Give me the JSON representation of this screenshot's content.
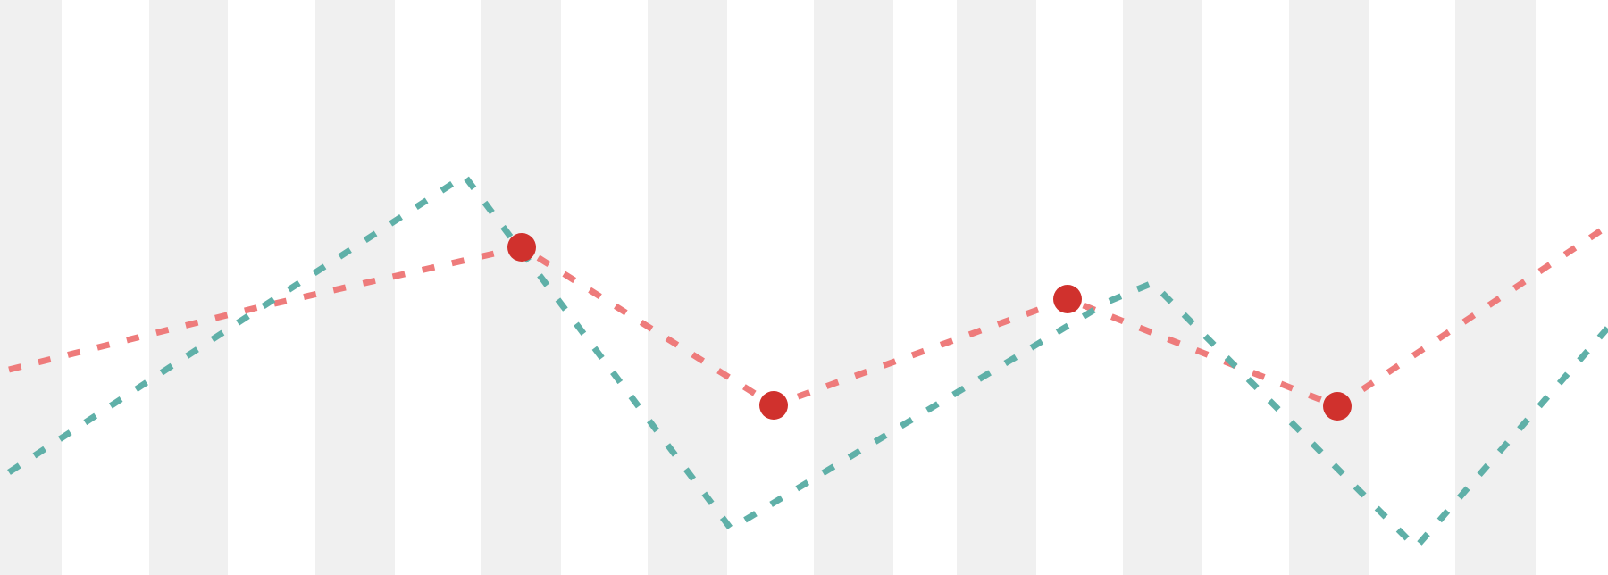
{
  "chart_data": {
    "type": "line",
    "title": "",
    "xlabel": "",
    "ylabel": "",
    "grid": false,
    "legend": "none",
    "x_domain": [
      0,
      1800
    ],
    "y_domain": [
      0,
      644
    ],
    "background_bands": {
      "color": "#f0f0f0",
      "ranges": [
        [
          0,
          69
        ],
        [
          167,
          255
        ],
        [
          353,
          442
        ],
        [
          538,
          628
        ],
        [
          725,
          814
        ],
        [
          911,
          1000
        ],
        [
          1071,
          1160
        ],
        [
          1257,
          1346
        ],
        [
          1443,
          1532
        ],
        [
          1629,
          1719
        ]
      ]
    },
    "series": [
      {
        "color": "#ee7b7b",
        "dash": "dashed",
        "points": [
          [
            10,
            414
          ],
          [
            290,
            344
          ],
          [
            584,
            277
          ],
          [
            866,
            454
          ],
          [
            1195,
            335
          ],
          [
            1497,
            455
          ],
          [
            1800,
            253
          ]
        ]
      },
      {
        "color": "#5fb0a8",
        "dash": "dashed",
        "points": [
          [
            10,
            529
          ],
          [
            290,
            346
          ],
          [
            520,
            197
          ],
          [
            818,
            592
          ],
          [
            1240,
            338
          ],
          [
            1290,
            317
          ],
          [
            1585,
            613
          ],
          [
            1800,
            367
          ]
        ]
      }
    ],
    "markers": {
      "color": "#d0312d",
      "points": [
        [
          584,
          277
        ],
        [
          866,
          454
        ],
        [
          1195,
          335
        ],
        [
          1497,
          455
        ]
      ]
    }
  }
}
